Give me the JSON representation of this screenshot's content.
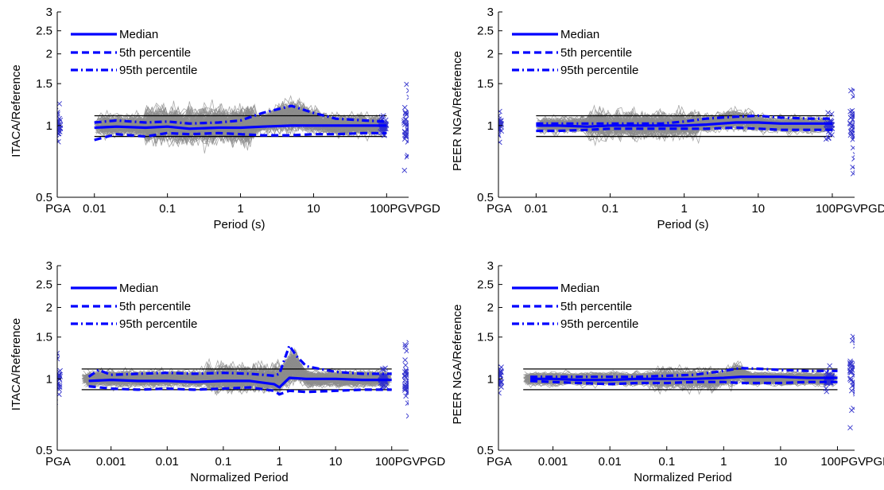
{
  "colors": {
    "traces": "#8c8c8c",
    "median": "#0000ff",
    "percentile": "#0000ff",
    "bounds": "#000000",
    "markers": "#3333cc"
  },
  "chart_data": [
    {
      "type": "line",
      "panel": "top-left",
      "xscale": "log",
      "yscale": "log",
      "xlabel": "Period (s)",
      "ylabel": "ITACA/Reference",
      "xlim": [
        0.01,
        100
      ],
      "ylim": [
        0.5,
        3
      ],
      "xtick_labels": [
        "0.01",
        "0.1",
        "1",
        "10",
        "100"
      ],
      "ytick_values": [
        0.5,
        1,
        1.5,
        2,
        2.5,
        3
      ],
      "ytick_labels": [
        "0.5",
        "1",
        "1.5",
        "2",
        "2.5",
        "3"
      ],
      "category_labels": {
        "left": [
          "PGA"
        ],
        "right": [
          "PGV",
          "PGD"
        ]
      },
      "legend": {
        "position": "top-left",
        "entries": [
          "Median",
          "5th percentile",
          "95th percentile"
        ]
      },
      "reference_lines": [
        0.9,
        1.1
      ],
      "series": [
        {
          "name": "Median",
          "style": "solid",
          "x": [
            0.01,
            0.02,
            0.05,
            0.1,
            0.2,
            0.5,
            1,
            2,
            5,
            10,
            20,
            50,
            100
          ],
          "y": [
            0.98,
            0.99,
            0.98,
            0.99,
            0.97,
            0.98,
            0.98,
            0.99,
            1.0,
            1.0,
            1.0,
            1.0,
            1.0
          ]
        },
        {
          "name": "5th percentile",
          "style": "dashed",
          "x": [
            0.01,
            0.02,
            0.05,
            0.1,
            0.2,
            0.5,
            1,
            2,
            5,
            10,
            20,
            50,
            100
          ],
          "y": [
            0.87,
            0.92,
            0.9,
            0.93,
            0.92,
            0.93,
            0.92,
            0.91,
            0.91,
            0.92,
            0.92,
            0.93,
            0.93
          ]
        },
        {
          "name": "95th percentile",
          "style": "dashdot",
          "x": [
            0.01,
            0.02,
            0.05,
            0.1,
            0.2,
            0.5,
            1,
            2,
            5,
            10,
            20,
            50,
            100
          ],
          "y": [
            1.03,
            1.05,
            1.03,
            1.04,
            1.02,
            1.03,
            1.05,
            1.13,
            1.21,
            1.13,
            1.07,
            1.05,
            1.04
          ]
        }
      ]
    },
    {
      "type": "line",
      "panel": "top-right",
      "xscale": "log",
      "yscale": "log",
      "xlabel": "Period (s)",
      "ylabel": "PEER NGA/Reference",
      "xlim": [
        0.01,
        100
      ],
      "ylim": [
        0.5,
        3
      ],
      "xtick_labels": [
        "0.01",
        "0.1",
        "1",
        "10",
        "100"
      ],
      "ytick_values": [
        0.5,
        1,
        1.5,
        2,
        2.5,
        3
      ],
      "ytick_labels": [
        "0.5",
        "1",
        "1.5",
        "2",
        "2.5",
        "3"
      ],
      "category_labels": {
        "left": [
          "PGA"
        ],
        "right": [
          "PGV",
          "PGD"
        ]
      },
      "legend": {
        "position": "top-left",
        "entries": [
          "Median",
          "5th percentile",
          "95th percentile"
        ]
      },
      "reference_lines": [
        0.9,
        1.1
      ],
      "series": [
        {
          "name": "Median",
          "style": "solid",
          "x": [
            0.01,
            0.02,
            0.05,
            0.1,
            0.2,
            0.5,
            1,
            2,
            5,
            10,
            20,
            50,
            100
          ],
          "y": [
            1.0,
            1.0,
            0.99,
            1.0,
            1.0,
            1.0,
            1.0,
            1.01,
            1.03,
            1.03,
            1.02,
            1.02,
            1.02
          ]
        },
        {
          "name": "5th percentile",
          "style": "dashed",
          "x": [
            0.01,
            0.02,
            0.05,
            0.1,
            0.2,
            0.5,
            1,
            2,
            5,
            10,
            20,
            50,
            100
          ],
          "y": [
            0.95,
            0.95,
            0.96,
            0.97,
            0.97,
            0.97,
            0.97,
            0.97,
            0.98,
            0.97,
            0.96,
            0.96,
            0.96
          ]
        },
        {
          "name": "95th percentile",
          "style": "dashdot",
          "x": [
            0.01,
            0.02,
            0.05,
            0.1,
            0.2,
            0.5,
            1,
            2,
            5,
            10,
            20,
            50,
            100
          ],
          "y": [
            1.02,
            1.02,
            1.02,
            1.02,
            1.02,
            1.02,
            1.04,
            1.07,
            1.09,
            1.1,
            1.08,
            1.07,
            1.07
          ]
        }
      ]
    },
    {
      "type": "line",
      "panel": "bottom-left",
      "xscale": "log",
      "yscale": "log",
      "xlabel": "Normalized Period",
      "ylabel": "ITACA/Reference",
      "xlim": [
        0.0003,
        100
      ],
      "ylim": [
        0.5,
        3
      ],
      "xtick_labels": [
        "0.001",
        "0.01",
        "0.1",
        "1",
        "10",
        "100"
      ],
      "ytick_values": [
        0.5,
        1,
        1.5,
        2,
        2.5,
        3
      ],
      "ytick_labels": [
        "0.5",
        "1",
        "1.5",
        "2",
        "2.5",
        "3"
      ],
      "category_labels": {
        "left": [
          "PGA"
        ],
        "right": [
          "PGV",
          "PGD"
        ]
      },
      "legend": {
        "position": "top-left",
        "entries": [
          "Median",
          "5th percentile",
          "95th percentile"
        ]
      },
      "reference_lines": [
        0.9,
        1.1
      ],
      "series": [
        {
          "name": "Median",
          "style": "solid",
          "x": [
            0.0004,
            0.001,
            0.003,
            0.01,
            0.03,
            0.1,
            0.3,
            0.8,
            1,
            1.5,
            3,
            10,
            30,
            100
          ],
          "y": [
            0.98,
            0.99,
            0.98,
            0.98,
            0.97,
            0.98,
            0.98,
            0.95,
            0.92,
            1.01,
            1.0,
            1.0,
            0.99,
            0.99
          ]
        },
        {
          "name": "5th percentile",
          "style": "dashed",
          "x": [
            0.0004,
            0.001,
            0.003,
            0.01,
            0.03,
            0.1,
            0.3,
            0.8,
            1,
            1.5,
            3,
            10,
            30,
            100
          ],
          "y": [
            0.93,
            0.91,
            0.9,
            0.91,
            0.9,
            0.91,
            0.92,
            0.89,
            0.86,
            0.89,
            0.88,
            0.89,
            0.9,
            0.9
          ]
        },
        {
          "name": "95th percentile",
          "style": "dashdot",
          "x": [
            0.0004,
            0.0006,
            0.001,
            0.003,
            0.01,
            0.03,
            0.1,
            0.3,
            0.8,
            1,
            1.5,
            2,
            3,
            10,
            30,
            100
          ],
          "y": [
            1.02,
            1.09,
            1.04,
            1.05,
            1.06,
            1.05,
            1.06,
            1.05,
            1.03,
            1.05,
            1.38,
            1.25,
            1.13,
            1.07,
            1.05,
            1.05
          ]
        }
      ]
    },
    {
      "type": "line",
      "panel": "bottom-right",
      "xscale": "log",
      "yscale": "log",
      "xlabel": "Normalized Period",
      "ylabel": "PEER NGA/Reference",
      "xlim": [
        0.0003,
        100
      ],
      "ylim": [
        0.5,
        3
      ],
      "xtick_labels": [
        "0.001",
        "0.01",
        "0.1",
        "1",
        "10",
        "100"
      ],
      "ytick_values": [
        0.5,
        1,
        1.5,
        2,
        2.5,
        3
      ],
      "ytick_labels": [
        "0.5",
        "1",
        "1.5",
        "2",
        "2.5",
        "3"
      ],
      "category_labels": {
        "left": [
          "PGA"
        ],
        "right": [
          "PGV",
          "PGD"
        ]
      },
      "legend": {
        "position": "top-left",
        "entries": [
          "Median",
          "5th percentile",
          "95th percentile"
        ]
      },
      "reference_lines": [
        0.9,
        1.1
      ],
      "series": [
        {
          "name": "Median",
          "style": "solid",
          "x": [
            0.0004,
            0.001,
            0.003,
            0.01,
            0.03,
            0.1,
            0.3,
            1,
            2,
            5,
            10,
            30,
            100
          ],
          "y": [
            1.0,
            1.0,
            0.99,
            0.99,
            1.0,
            1.0,
            1.0,
            1.01,
            1.02,
            1.02,
            1.02,
            1.01,
            1.01
          ]
        },
        {
          "name": "5th percentile",
          "style": "dashed",
          "x": [
            0.0004,
            0.001,
            0.003,
            0.01,
            0.03,
            0.1,
            0.3,
            1,
            2,
            5,
            10,
            30,
            100
          ],
          "y": [
            0.98,
            0.97,
            0.96,
            0.95,
            0.96,
            0.96,
            0.97,
            0.97,
            0.96,
            0.96,
            0.96,
            0.97,
            0.97
          ]
        },
        {
          "name": "95th percentile",
          "style": "dashdot",
          "x": [
            0.0004,
            0.001,
            0.003,
            0.01,
            0.03,
            0.1,
            0.3,
            1,
            2,
            5,
            10,
            30,
            100
          ],
          "y": [
            1.02,
            1.02,
            1.02,
            1.02,
            1.02,
            1.03,
            1.04,
            1.08,
            1.11,
            1.1,
            1.09,
            1.08,
            1.08
          ]
        }
      ]
    }
  ]
}
